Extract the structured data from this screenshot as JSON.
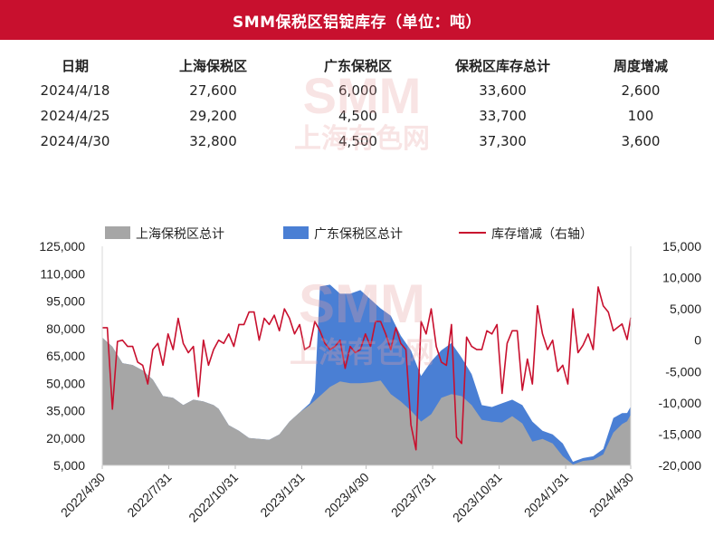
{
  "banner": {
    "title": "SMM保税区铝锭库存（单位：吨）"
  },
  "table": {
    "headers": [
      "日期",
      "上海保税区",
      "广东保税区",
      "保税区库存总计",
      "周度增减"
    ],
    "rows": [
      [
        "2024/4/18",
        "27,600",
        "6,000",
        "33,600",
        "2,600"
      ],
      [
        "2024/4/25",
        "29,200",
        "4,500",
        "33,700",
        "100"
      ],
      [
        "2024/4/30",
        "32,800",
        "4,500",
        "37,300",
        "3,600"
      ]
    ]
  },
  "watermark": {
    "brand": "SMM",
    "sub": "上海有色网"
  },
  "colors": {
    "banner": "#c8102e",
    "shanghai": "#a6a6a6",
    "guangdong": "#4a7fd4",
    "change": "#c8102e",
    "watermark": "#e8a0a0"
  },
  "chart_data": {
    "type": "area",
    "legend_position": "top",
    "grid": false,
    "x_tick_labels": [
      "2022/4/30",
      "2022/7/31",
      "2022/10/31",
      "2023/1/31",
      "2023/4/30",
      "2023/7/31",
      "2023/10/31",
      "2024/1/31",
      "2024/4/30"
    ],
    "x_range": [
      "2022/4/30",
      "2024/4/30"
    ],
    "left_axis": {
      "ylim": [
        5000,
        125000
      ],
      "ticks": [
        "5,000",
        "20,000",
        "35,000",
        "50,000",
        "65,000",
        "80,000",
        "95,000",
        "110,000",
        "125,000"
      ]
    },
    "right_axis": {
      "ylim": [
        -20000,
        15000
      ],
      "ticks": [
        "-20,000",
        "-15,000",
        "-10,000",
        "-5,000",
        "0",
        "5,000",
        "10,000",
        "15,000"
      ]
    },
    "series": [
      {
        "name": "上海保税区总计",
        "type": "area",
        "axis": "left",
        "points": [
          [
            "2022/4/30",
            75000
          ],
          [
            "2022/5/14",
            70000
          ],
          [
            "2022/5/28",
            61000
          ],
          [
            "2022/6/11",
            60000
          ],
          [
            "2022/6/25",
            57000
          ],
          [
            "2022/7/9",
            52000
          ],
          [
            "2022/7/23",
            43000
          ],
          [
            "2022/8/6",
            42000
          ],
          [
            "2022/8/20",
            38000
          ],
          [
            "2022/9/3",
            41000
          ],
          [
            "2022/9/17",
            40000
          ],
          [
            "2022/10/1",
            38000
          ],
          [
            "2022/10/8",
            36000
          ],
          [
            "2022/10/22",
            27000
          ],
          [
            "2022/11/5",
            24000
          ],
          [
            "2022/11/19",
            20000
          ],
          [
            "2022/12/3",
            19500
          ],
          [
            "2022/12/17",
            19000
          ],
          [
            "2022/12/31",
            22000
          ],
          [
            "2023/1/14",
            29000
          ],
          [
            "2023/1/28",
            34000
          ],
          [
            "2023/2/11",
            38000
          ],
          [
            "2023/2/25",
            43000
          ],
          [
            "2023/3/11",
            48000
          ],
          [
            "2023/3/25",
            51000
          ],
          [
            "2023/4/8",
            50000
          ],
          [
            "2023/4/22",
            50000
          ],
          [
            "2023/5/6",
            50500
          ],
          [
            "2023/5/20",
            51500
          ],
          [
            "2023/6/3",
            44000
          ],
          [
            "2023/6/17",
            40000
          ],
          [
            "2023/7/1",
            35000
          ],
          [
            "2023/7/15",
            29000
          ],
          [
            "2023/7/29",
            33000
          ],
          [
            "2023/8/12",
            42000
          ],
          [
            "2023/8/26",
            44000
          ],
          [
            "2023/9/9",
            43000
          ],
          [
            "2023/9/23",
            38000
          ],
          [
            "2023/10/7",
            30000
          ],
          [
            "2023/10/21",
            29000
          ],
          [
            "2023/11/4",
            28500
          ],
          [
            "2023/11/18",
            32000
          ],
          [
            "2023/12/2",
            28000
          ],
          [
            "2023/12/16",
            18000
          ],
          [
            "2023/12/30",
            19500
          ],
          [
            "2024/1/13",
            17000
          ],
          [
            "2024/1/27",
            10000
          ],
          [
            "2024/2/10",
            5500
          ],
          [
            "2024/2/24",
            7500
          ],
          [
            "2024/3/9",
            8000
          ],
          [
            "2024/3/23",
            11000
          ],
          [
            "2024/4/6",
            23000
          ],
          [
            "2024/4/18",
            27600
          ],
          [
            "2024/4/25",
            29200
          ],
          [
            "2024/4/30",
            32800
          ]
        ]
      },
      {
        "name": "广东保税区总计",
        "type": "area",
        "axis": "left",
        "points": [
          [
            "2022/4/30",
            75000
          ],
          [
            "2022/5/14",
            70000
          ],
          [
            "2022/5/28",
            61000
          ],
          [
            "2022/6/11",
            60000
          ],
          [
            "2022/6/25",
            57000
          ],
          [
            "2022/7/9",
            52000
          ],
          [
            "2022/7/23",
            43000
          ],
          [
            "2022/8/6",
            42000
          ],
          [
            "2022/8/20",
            38000
          ],
          [
            "2022/9/3",
            41000
          ],
          [
            "2022/9/17",
            40000
          ],
          [
            "2022/10/1",
            38000
          ],
          [
            "2022/10/8",
            36000
          ],
          [
            "2022/10/22",
            27000
          ],
          [
            "2022/11/5",
            24000
          ],
          [
            "2022/11/19",
            20000
          ],
          [
            "2022/12/3",
            19500
          ],
          [
            "2022/12/17",
            19000
          ],
          [
            "2022/12/31",
            22000
          ],
          [
            "2023/1/14",
            29000
          ],
          [
            "2023/1/28",
            34000
          ],
          [
            "2023/2/11",
            39000
          ],
          [
            "2023/2/18",
            45000
          ],
          [
            "2023/2/25",
            103000
          ],
          [
            "2023/3/11",
            104000
          ],
          [
            "2023/3/25",
            99000
          ],
          [
            "2023/4/8",
            99000
          ],
          [
            "2023/4/22",
            101000
          ],
          [
            "2023/5/6",
            96000
          ],
          [
            "2023/5/20",
            91000
          ],
          [
            "2023/6/3",
            87000
          ],
          [
            "2023/6/17",
            76000
          ],
          [
            "2023/7/1",
            68000
          ],
          [
            "2023/7/15",
            54000
          ],
          [
            "2023/7/29",
            62000
          ],
          [
            "2023/8/12",
            68000
          ],
          [
            "2023/8/26",
            72000
          ],
          [
            "2023/9/9",
            64000
          ],
          [
            "2023/9/23",
            55000
          ],
          [
            "2023/10/7",
            38000
          ],
          [
            "2023/10/21",
            37000
          ],
          [
            "2023/11/4",
            39000
          ],
          [
            "2023/11/18",
            41000
          ],
          [
            "2023/12/2",
            38000
          ],
          [
            "2023/12/16",
            29000
          ],
          [
            "2023/12/30",
            24000
          ],
          [
            "2024/1/13",
            22000
          ],
          [
            "2024/1/27",
            17000
          ],
          [
            "2024/2/10",
            7000
          ],
          [
            "2024/2/24",
            9000
          ],
          [
            "2024/3/9",
            10000
          ],
          [
            "2024/3/23",
            14000
          ],
          [
            "2024/4/6",
            31000
          ],
          [
            "2024/4/18",
            33600
          ],
          [
            "2024/4/25",
            33700
          ],
          [
            "2024/4/30",
            37300
          ]
        ]
      },
      {
        "name": "库存增减（右轴）",
        "type": "line",
        "axis": "right",
        "points": [
          [
            "2022/4/30",
            2000
          ],
          [
            "2022/5/7",
            2000
          ],
          [
            "2022/5/14",
            -11000
          ],
          [
            "2022/5/21",
            -200
          ],
          [
            "2022/5/28",
            0
          ],
          [
            "2022/6/4",
            -1000
          ],
          [
            "2022/6/11",
            -1000
          ],
          [
            "2022/6/18",
            -3500
          ],
          [
            "2022/6/25",
            -4000
          ],
          [
            "2022/7/2",
            -7000
          ],
          [
            "2022/7/9",
            -1500
          ],
          [
            "2022/7/16",
            -500
          ],
          [
            "2022/7/23",
            -4000
          ],
          [
            "2022/7/30",
            1000
          ],
          [
            "2022/8/6",
            -1500
          ],
          [
            "2022/8/13",
            3500
          ],
          [
            "2022/8/20",
            -500
          ],
          [
            "2022/8/27",
            -2000
          ],
          [
            "2022/9/3",
            -1000
          ],
          [
            "2022/9/10",
            -9000
          ],
          [
            "2022/9/17",
            0
          ],
          [
            "2022/9/24",
            -4000
          ],
          [
            "2022/10/1",
            -1500
          ],
          [
            "2022/10/8",
            0
          ],
          [
            "2022/10/15",
            -500
          ],
          [
            "2022/10/22",
            1000
          ],
          [
            "2022/10/29",
            -1000
          ],
          [
            "2022/11/5",
            2500
          ],
          [
            "2022/11/12",
            2500
          ],
          [
            "2022/11/19",
            4500
          ],
          [
            "2022/11/26",
            4500
          ],
          [
            "2022/12/3",
            0
          ],
          [
            "2022/12/10",
            3500
          ],
          [
            "2022/12/17",
            2500
          ],
          [
            "2022/12/24",
            4000
          ],
          [
            "2022/12/31",
            1500
          ],
          [
            "2023/1/7",
            5000
          ],
          [
            "2023/1/14",
            3500
          ],
          [
            "2023/1/21",
            1000
          ],
          [
            "2023/1/28",
            2500
          ],
          [
            "2023/2/4",
            -1500
          ],
          [
            "2023/2/11",
            -1000
          ],
          [
            "2023/2/18",
            3000
          ],
          [
            "2023/2/25",
            1500
          ],
          [
            "2023/3/4",
            -500
          ],
          [
            "2023/3/11",
            -1500
          ],
          [
            "2023/3/18",
            -1000
          ],
          [
            "2023/3/25",
            0
          ],
          [
            "2023/4/1",
            -4500
          ],
          [
            "2023/4/8",
            -1000
          ],
          [
            "2023/4/15",
            -2000
          ],
          [
            "2023/4/22",
            -1500
          ],
          [
            "2023/4/29",
            1000
          ],
          [
            "2023/5/6",
            -1000
          ],
          [
            "2023/5/13",
            3000
          ],
          [
            "2023/5/20",
            3000
          ],
          [
            "2023/5/27",
            1000
          ],
          [
            "2023/6/3",
            -1500
          ],
          [
            "2023/6/10",
            2000
          ],
          [
            "2023/6/17",
            -500
          ],
          [
            "2023/6/24",
            -1500
          ],
          [
            "2023/7/1",
            -13500
          ],
          [
            "2023/7/8",
            -17500
          ],
          [
            "2023/7/15",
            3000
          ],
          [
            "2023/7/22",
            1000
          ],
          [
            "2023/7/29",
            5000
          ],
          [
            "2023/8/5",
            -1000
          ],
          [
            "2023/8/12",
            -3500
          ],
          [
            "2023/8/19",
            -4000
          ],
          [
            "2023/8/26",
            2500
          ],
          [
            "2023/9/2",
            -15500
          ],
          [
            "2023/9/9",
            -16500
          ],
          [
            "2023/9/16",
            500
          ],
          [
            "2023/9/23",
            -1000
          ],
          [
            "2023/9/30",
            -1500
          ],
          [
            "2023/10/7",
            -1500
          ],
          [
            "2023/10/14",
            1500
          ],
          [
            "2023/10/21",
            1000
          ],
          [
            "2023/10/28",
            2500
          ],
          [
            "2023/11/4",
            -8500
          ],
          [
            "2023/11/11",
            -500
          ],
          [
            "2023/11/18",
            1500
          ],
          [
            "2023/11/25",
            1500
          ],
          [
            "2023/12/2",
            -8000
          ],
          [
            "2023/12/9",
            -3000
          ],
          [
            "2023/12/16",
            -7000
          ],
          [
            "2023/12/23",
            5500
          ],
          [
            "2023/12/30",
            1000
          ],
          [
            "2024/1/6",
            -1500
          ],
          [
            "2024/1/13",
            0
          ],
          [
            "2024/1/20",
            -5000
          ],
          [
            "2024/1/27",
            -4000
          ],
          [
            "2024/2/3",
            -7000
          ],
          [
            "2024/2/10",
            5000
          ],
          [
            "2024/2/17",
            -2000
          ],
          [
            "2024/2/24",
            -800
          ],
          [
            "2024/3/2",
            1000
          ],
          [
            "2024/3/9",
            -1500
          ],
          [
            "2024/3/16",
            8500
          ],
          [
            "2024/3/23",
            5500
          ],
          [
            "2024/3/30",
            4500
          ],
          [
            "2024/4/6",
            1500
          ],
          [
            "2024/4/18",
            2600
          ],
          [
            "2024/4/25",
            100
          ],
          [
            "2024/4/30",
            3600
          ]
        ]
      }
    ]
  }
}
